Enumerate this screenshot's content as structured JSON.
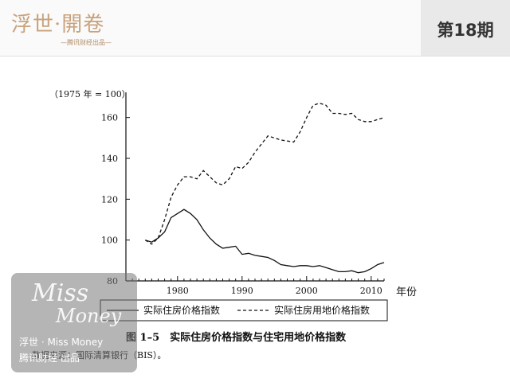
{
  "header": {
    "brand_logo_text": "浮世·開卷",
    "brand_sub_text": "—腾讯财经出品—",
    "issue_label": "第18期"
  },
  "watermark": {
    "miss": "Miss",
    "money": "Money",
    "line1": "浮世 · Miss Money",
    "line2": "腾讯财经 出品"
  },
  "figure": {
    "caption": "图 1–5　实际住房价格指数与住宅用地价格指数",
    "source": "数据来源：国际清算银行（BIS）。"
  },
  "chart_data": {
    "type": "line",
    "ylabel": "（1975 年 = 100）",
    "xlabel": "年份",
    "xlim": [
      1972,
      2012
    ],
    "ylim": [
      80,
      170
    ],
    "x_ticks": [
      1980,
      1990,
      2000,
      2010
    ],
    "y_ticks": [
      80,
      100,
      120,
      140,
      160
    ],
    "legend_position": "bottom",
    "series": [
      {
        "name": "实际住房价格指数",
        "style": "solid",
        "points": [
          [
            1975,
            100
          ],
          [
            1976,
            99
          ],
          [
            1977,
            101
          ],
          [
            1978,
            104
          ],
          [
            1979,
            111
          ],
          [
            1980,
            113
          ],
          [
            1981,
            115
          ],
          [
            1982,
            113
          ],
          [
            1983,
            110
          ],
          [
            1984,
            105
          ],
          [
            1985,
            101
          ],
          [
            1986,
            98
          ],
          [
            1987,
            96
          ],
          [
            1988,
            96.5
          ],
          [
            1989,
            97
          ],
          [
            1990,
            93
          ],
          [
            1991,
            93.5
          ],
          [
            1992,
            92.5
          ],
          [
            1993,
            92
          ],
          [
            1994,
            91.5
          ],
          [
            1995,
            90
          ],
          [
            1996,
            88
          ],
          [
            1997,
            87.5
          ],
          [
            1998,
            87
          ],
          [
            1999,
            87.5
          ],
          [
            2000,
            87.5
          ],
          [
            2001,
            87
          ],
          [
            2002,
            87.5
          ],
          [
            2003,
            86.5
          ],
          [
            2004,
            85.5
          ],
          [
            2005,
            84.5
          ],
          [
            2006,
            84.5
          ],
          [
            2007,
            85
          ],
          [
            2008,
            84
          ],
          [
            2009,
            84.5
          ],
          [
            2010,
            86
          ],
          [
            2011,
            88
          ],
          [
            2012,
            89
          ]
        ]
      },
      {
        "name": "实际住房用地价格指数",
        "style": "dashed",
        "points": [
          [
            1975,
            100
          ],
          [
            1976,
            98
          ],
          [
            1977,
            101
          ],
          [
            1978,
            110
          ],
          [
            1979,
            121
          ],
          [
            1980,
            127
          ],
          [
            1981,
            131
          ],
          [
            1982,
            131
          ],
          [
            1983,
            130
          ],
          [
            1984,
            134
          ],
          [
            1985,
            131
          ],
          [
            1986,
            128
          ],
          [
            1987,
            127
          ],
          [
            1988,
            130
          ],
          [
            1989,
            136
          ],
          [
            1990,
            135
          ],
          [
            1991,
            138
          ],
          [
            1992,
            143
          ],
          [
            1993,
            147
          ],
          [
            1994,
            151
          ],
          [
            1995,
            150
          ],
          [
            1996,
            149
          ],
          [
            1997,
            148.5
          ],
          [
            1998,
            148
          ],
          [
            1999,
            153
          ],
          [
            2000,
            160
          ],
          [
            2001,
            166
          ],
          [
            2002,
            167
          ],
          [
            2003,
            166
          ],
          [
            2004,
            162
          ],
          [
            2005,
            162
          ],
          [
            2006,
            161.5
          ],
          [
            2007,
            162
          ],
          [
            2008,
            159
          ],
          [
            2009,
            158
          ],
          [
            2010,
            158
          ],
          [
            2011,
            159
          ],
          [
            2012,
            160
          ]
        ]
      }
    ]
  }
}
